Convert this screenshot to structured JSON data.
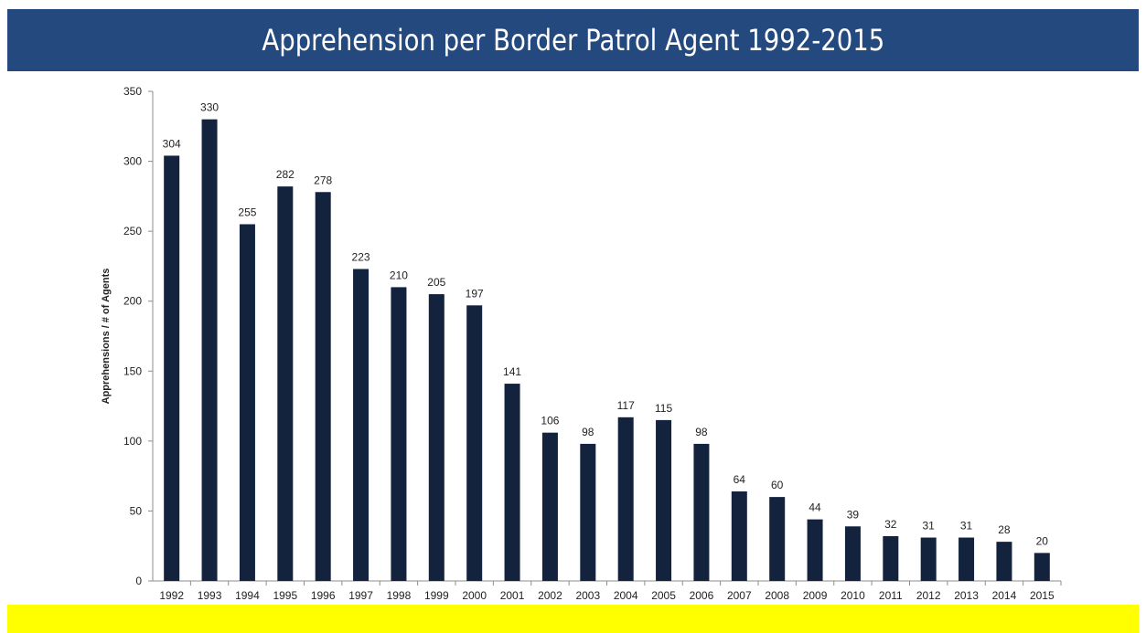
{
  "header": {
    "title": "Apprehension per Border Patrol Agent 1992-2015"
  },
  "colors": {
    "title_bg": "#24497f",
    "bar": "#13223d",
    "band": "#ffff00"
  },
  "chart_data": {
    "type": "bar",
    "title": "Apprehension per Border Patrol Agent 1992-2015",
    "xlabel": "",
    "ylabel": "Apprehensions / # of Agents",
    "ylim": [
      0,
      350
    ],
    "yticks": [
      0,
      50,
      100,
      150,
      200,
      250,
      300,
      350
    ],
    "grid": false,
    "legend": "none",
    "categories": [
      "1992",
      "1993",
      "1994",
      "1995",
      "1996",
      "1997",
      "1998",
      "1999",
      "2000",
      "2001",
      "2002",
      "2003",
      "2004",
      "2005",
      "2006",
      "2007",
      "2008",
      "2009",
      "2010",
      "2011",
      "2012",
      "2013",
      "2014",
      "2015"
    ],
    "values": [
      304,
      330,
      255,
      282,
      278,
      223,
      210,
      205,
      197,
      141,
      106,
      98,
      117,
      115,
      98,
      64,
      60,
      44,
      39,
      32,
      31,
      31,
      28,
      20
    ]
  }
}
